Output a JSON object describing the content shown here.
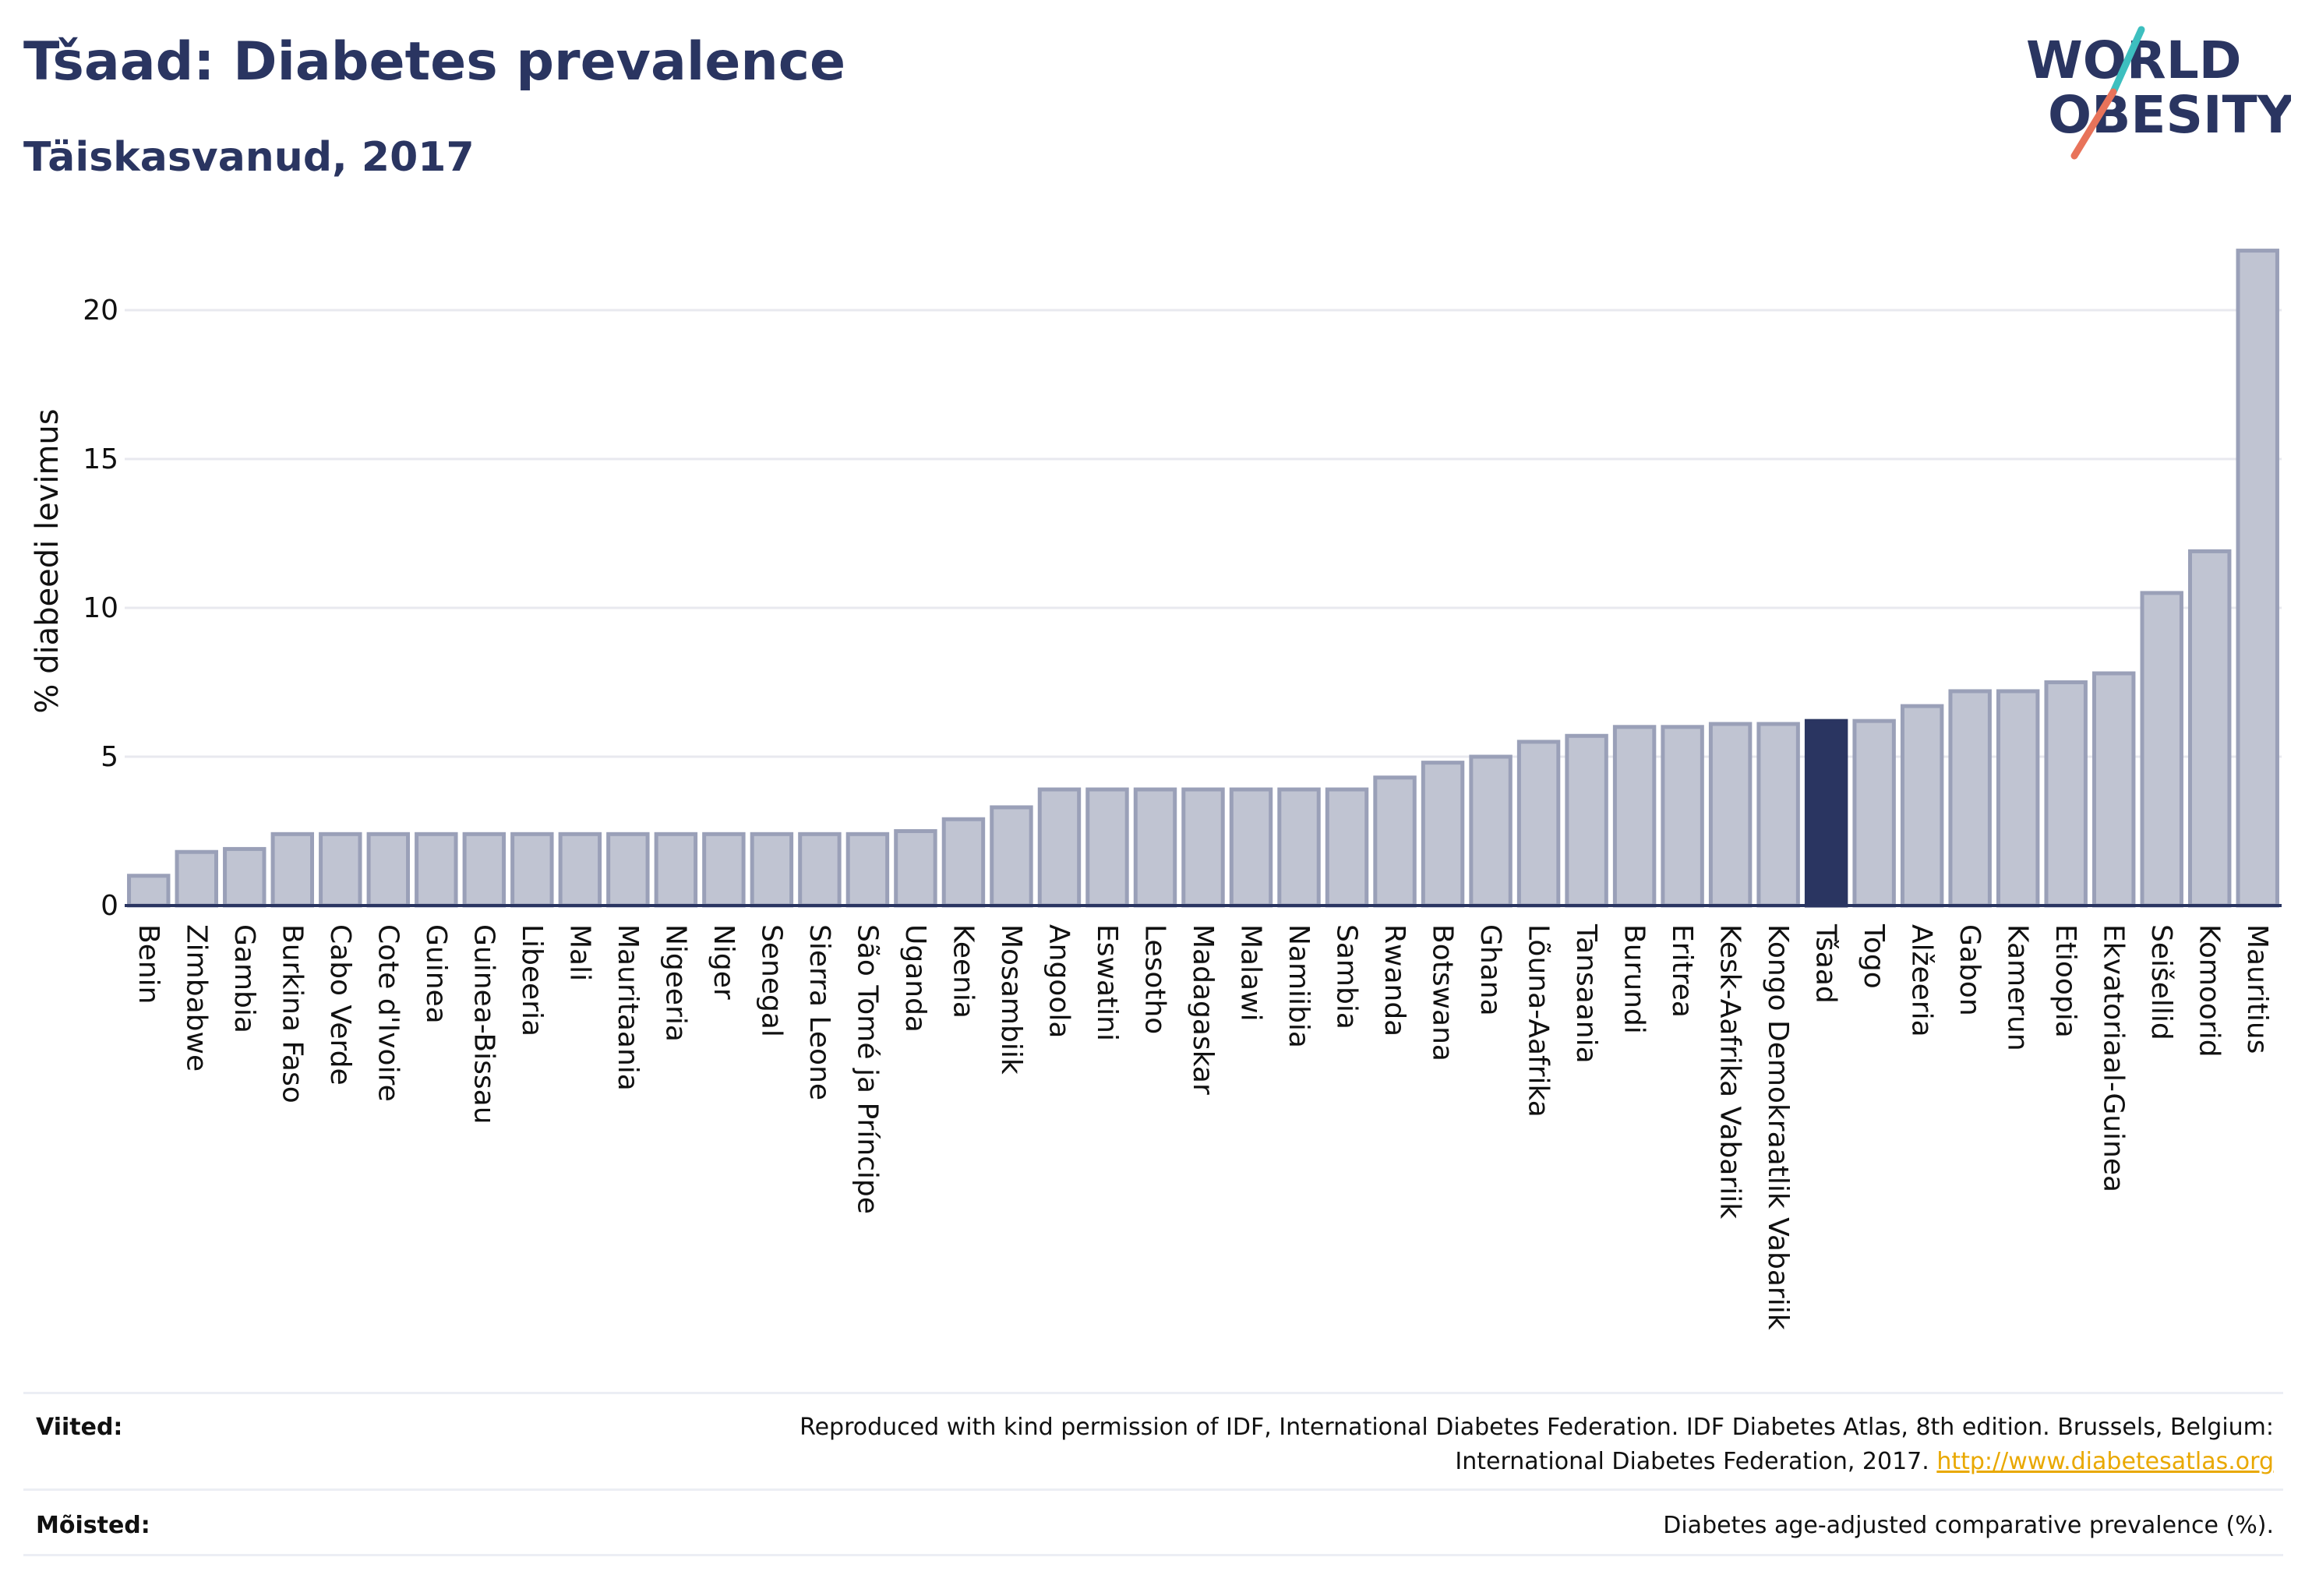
{
  "header": {
    "title": "Tšaad: Diabetes prevalence",
    "subtitle": "Täiskasvanud, 2017"
  },
  "logo": {
    "line1": "WORLD",
    "line2": "OBESITY",
    "slash_colors": [
      "#3dbfbf",
      "#e8735a"
    ]
  },
  "colors": {
    "bar": "#c0c4d2",
    "bar_stroke": "#9aa0b8",
    "highlight": "#2a3561",
    "axis": "#2a3561",
    "grid": "#e8e9ef",
    "text": "#111111",
    "link": "#e9a800"
  },
  "chart_data": {
    "type": "bar",
    "ylabel": "% diabeedi levimus",
    "ylim": [
      0,
      22
    ],
    "yticks": [
      0,
      5,
      10,
      15,
      20
    ],
    "grid": true,
    "highlight": "Tšaad",
    "categories": [
      "Benin",
      "Zimbabwe",
      "Gambia",
      "Burkina Faso",
      "Cabo Verde",
      "Cote d'Ivoire",
      "Guinea",
      "Guinea-Bissau",
      "Libeeria",
      "Mali",
      "Mauritaania",
      "Nigeeria",
      "Niger",
      "Senegal",
      "Sierra Leone",
      "São Tomé ja Príncipe",
      "Uganda",
      "Keenia",
      "Mosambiik",
      "Angoola",
      "Eswatini",
      "Lesotho",
      "Madagaskar",
      "Malawi",
      "Namiibia",
      "Sambia",
      "Rwanda",
      "Botswana",
      "Ghana",
      "Lõuna-Aafrika",
      "Tansaania",
      "Burundi",
      "Eritrea",
      "Kesk-Aafrika Vabariik",
      "Kongo Demokraatlik Vabariik",
      "Tšaad",
      "Togo",
      "Alžeeria",
      "Gabon",
      "Kamerun",
      "Etioopia",
      "Ekvatoriaal-Guinea",
      "Seišellid",
      "Komoorid",
      "Mauritius"
    ],
    "values": [
      1.0,
      1.8,
      1.9,
      2.4,
      2.4,
      2.4,
      2.4,
      2.4,
      2.4,
      2.4,
      2.4,
      2.4,
      2.4,
      2.4,
      2.4,
      2.4,
      2.5,
      2.9,
      3.3,
      3.9,
      3.9,
      3.9,
      3.9,
      3.9,
      3.9,
      3.9,
      4.3,
      4.8,
      5.0,
      5.5,
      5.7,
      6.0,
      6.0,
      6.1,
      6.1,
      6.2,
      6.2,
      6.7,
      7.2,
      7.2,
      7.5,
      7.8,
      10.5,
      11.9,
      22.0
    ]
  },
  "footer": {
    "sources_label": "Viited:",
    "sources_line1": "Reproduced with kind permission of IDF, International Diabetes Federation. IDF Diabetes Atlas, 8th edition. Brussels, Belgium:",
    "sources_line2": "International Diabetes Federation, 2017.",
    "sources_link": "http://www.diabetesatlas.org",
    "definitions_label": "Mõisted:",
    "definitions_text": "Diabetes age-adjusted comparative prevalence (%)."
  }
}
